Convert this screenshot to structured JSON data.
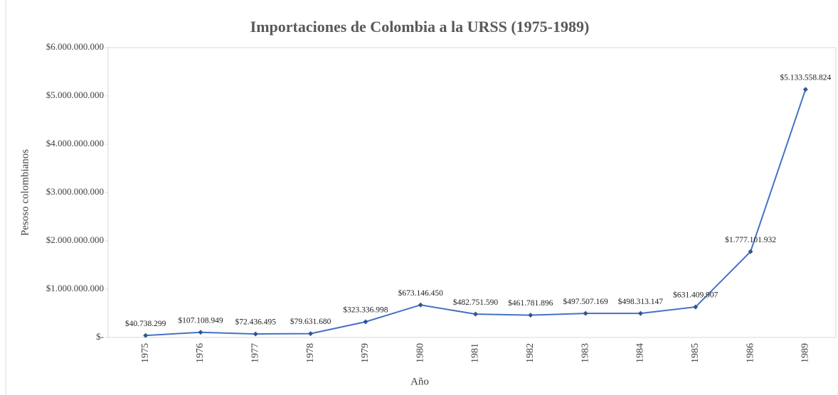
{
  "chart_data": {
    "type": "line",
    "title": "Importaciones de Colombia a la URSS (1975-1989)",
    "x_label": "Año",
    "y_label": "Pesoso colombianos",
    "categories": [
      "1975",
      "1976",
      "1977",
      "1978",
      "1979",
      "1980",
      "1981",
      "1982",
      "1983",
      "1984",
      "1985",
      "1986",
      "1989"
    ],
    "series": [
      {
        "name": "Importaciones",
        "color": "#4472c4",
        "values": [
          40738299,
          107108949,
          72436495,
          79631680,
          323336998,
          673146450,
          482751590,
          461781896,
          497507169,
          498313147,
          631409907,
          1777101932,
          5133558824
        ],
        "value_labels": [
          "$40.738.299",
          "$107.108.949",
          "$72.436.495",
          "$79.631.680",
          "$323.336.998",
          "$673.146.450",
          "$482.751.590",
          "$461.781.896",
          "$497.507.169",
          "$498.313.147",
          "$631.409.907",
          "$1.777.101.932",
          "$5.133.558.824"
        ]
      }
    ],
    "ylim": [
      0,
      6000000000
    ],
    "yticks": [
      {
        "value": 0,
        "label": "$-"
      },
      {
        "value": 1000000000,
        "label": "$1.000.000.000"
      },
      {
        "value": 2000000000,
        "label": "$2.000.000.000"
      },
      {
        "value": 3000000000,
        "label": "$3.000.000.000"
      },
      {
        "value": 4000000000,
        "label": "$4.000.000.000"
      },
      {
        "value": 5000000000,
        "label": "$5.000.000.000"
      },
      {
        "value": 6000000000,
        "label": "$6.000.000.000"
      }
    ]
  }
}
